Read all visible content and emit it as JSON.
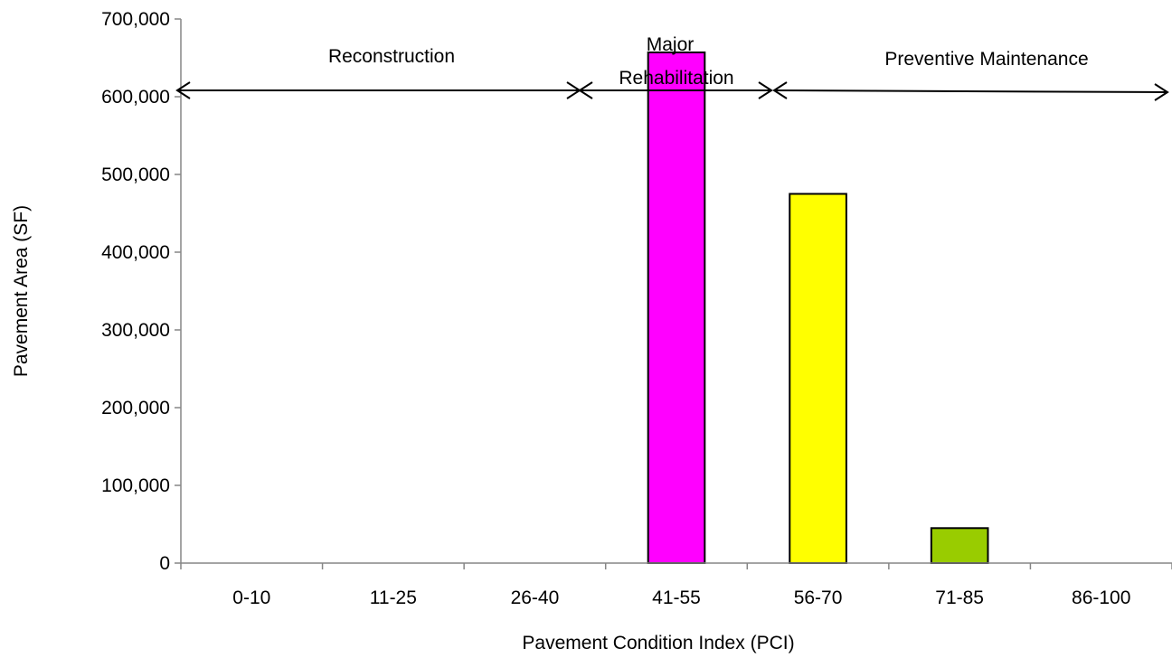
{
  "chart_data": {
    "type": "bar",
    "title": "",
    "xlabel": "Pavement Condition Index (PCI)",
    "ylabel": "Pavement Area (SF)",
    "categories": [
      "0-10",
      "11-25",
      "26-40",
      "41-55",
      "56-70",
      "71-85",
      "86-100"
    ],
    "values": [
      0,
      0,
      0,
      657000,
      475000,
      45000,
      0
    ],
    "bar_colors": [
      "#FF00FF",
      "#FF00FF",
      "#FF00FF",
      "#FF00FF",
      "#FFFF00",
      "#99CC00",
      "#99CC00"
    ],
    "ylim": [
      0,
      700000
    ],
    "yticks": [
      "0",
      "100,000",
      "200,000",
      "300,000",
      "400,000",
      "500,000",
      "600,000",
      "700,000"
    ],
    "grid": false,
    "legend": "none",
    "annotations": [
      {
        "label": "Reconstruction",
        "span": [
          "0-10",
          "26-40"
        ]
      },
      {
        "label": "Major",
        "span": [
          "41-55",
          "41-55"
        ]
      },
      {
        "label": "Rehabilitation",
        "span": [
          "41-55",
          "41-55"
        ]
      },
      {
        "label": "Preventive Maintenance",
        "span": [
          "56-70",
          "86-100"
        ]
      }
    ]
  }
}
